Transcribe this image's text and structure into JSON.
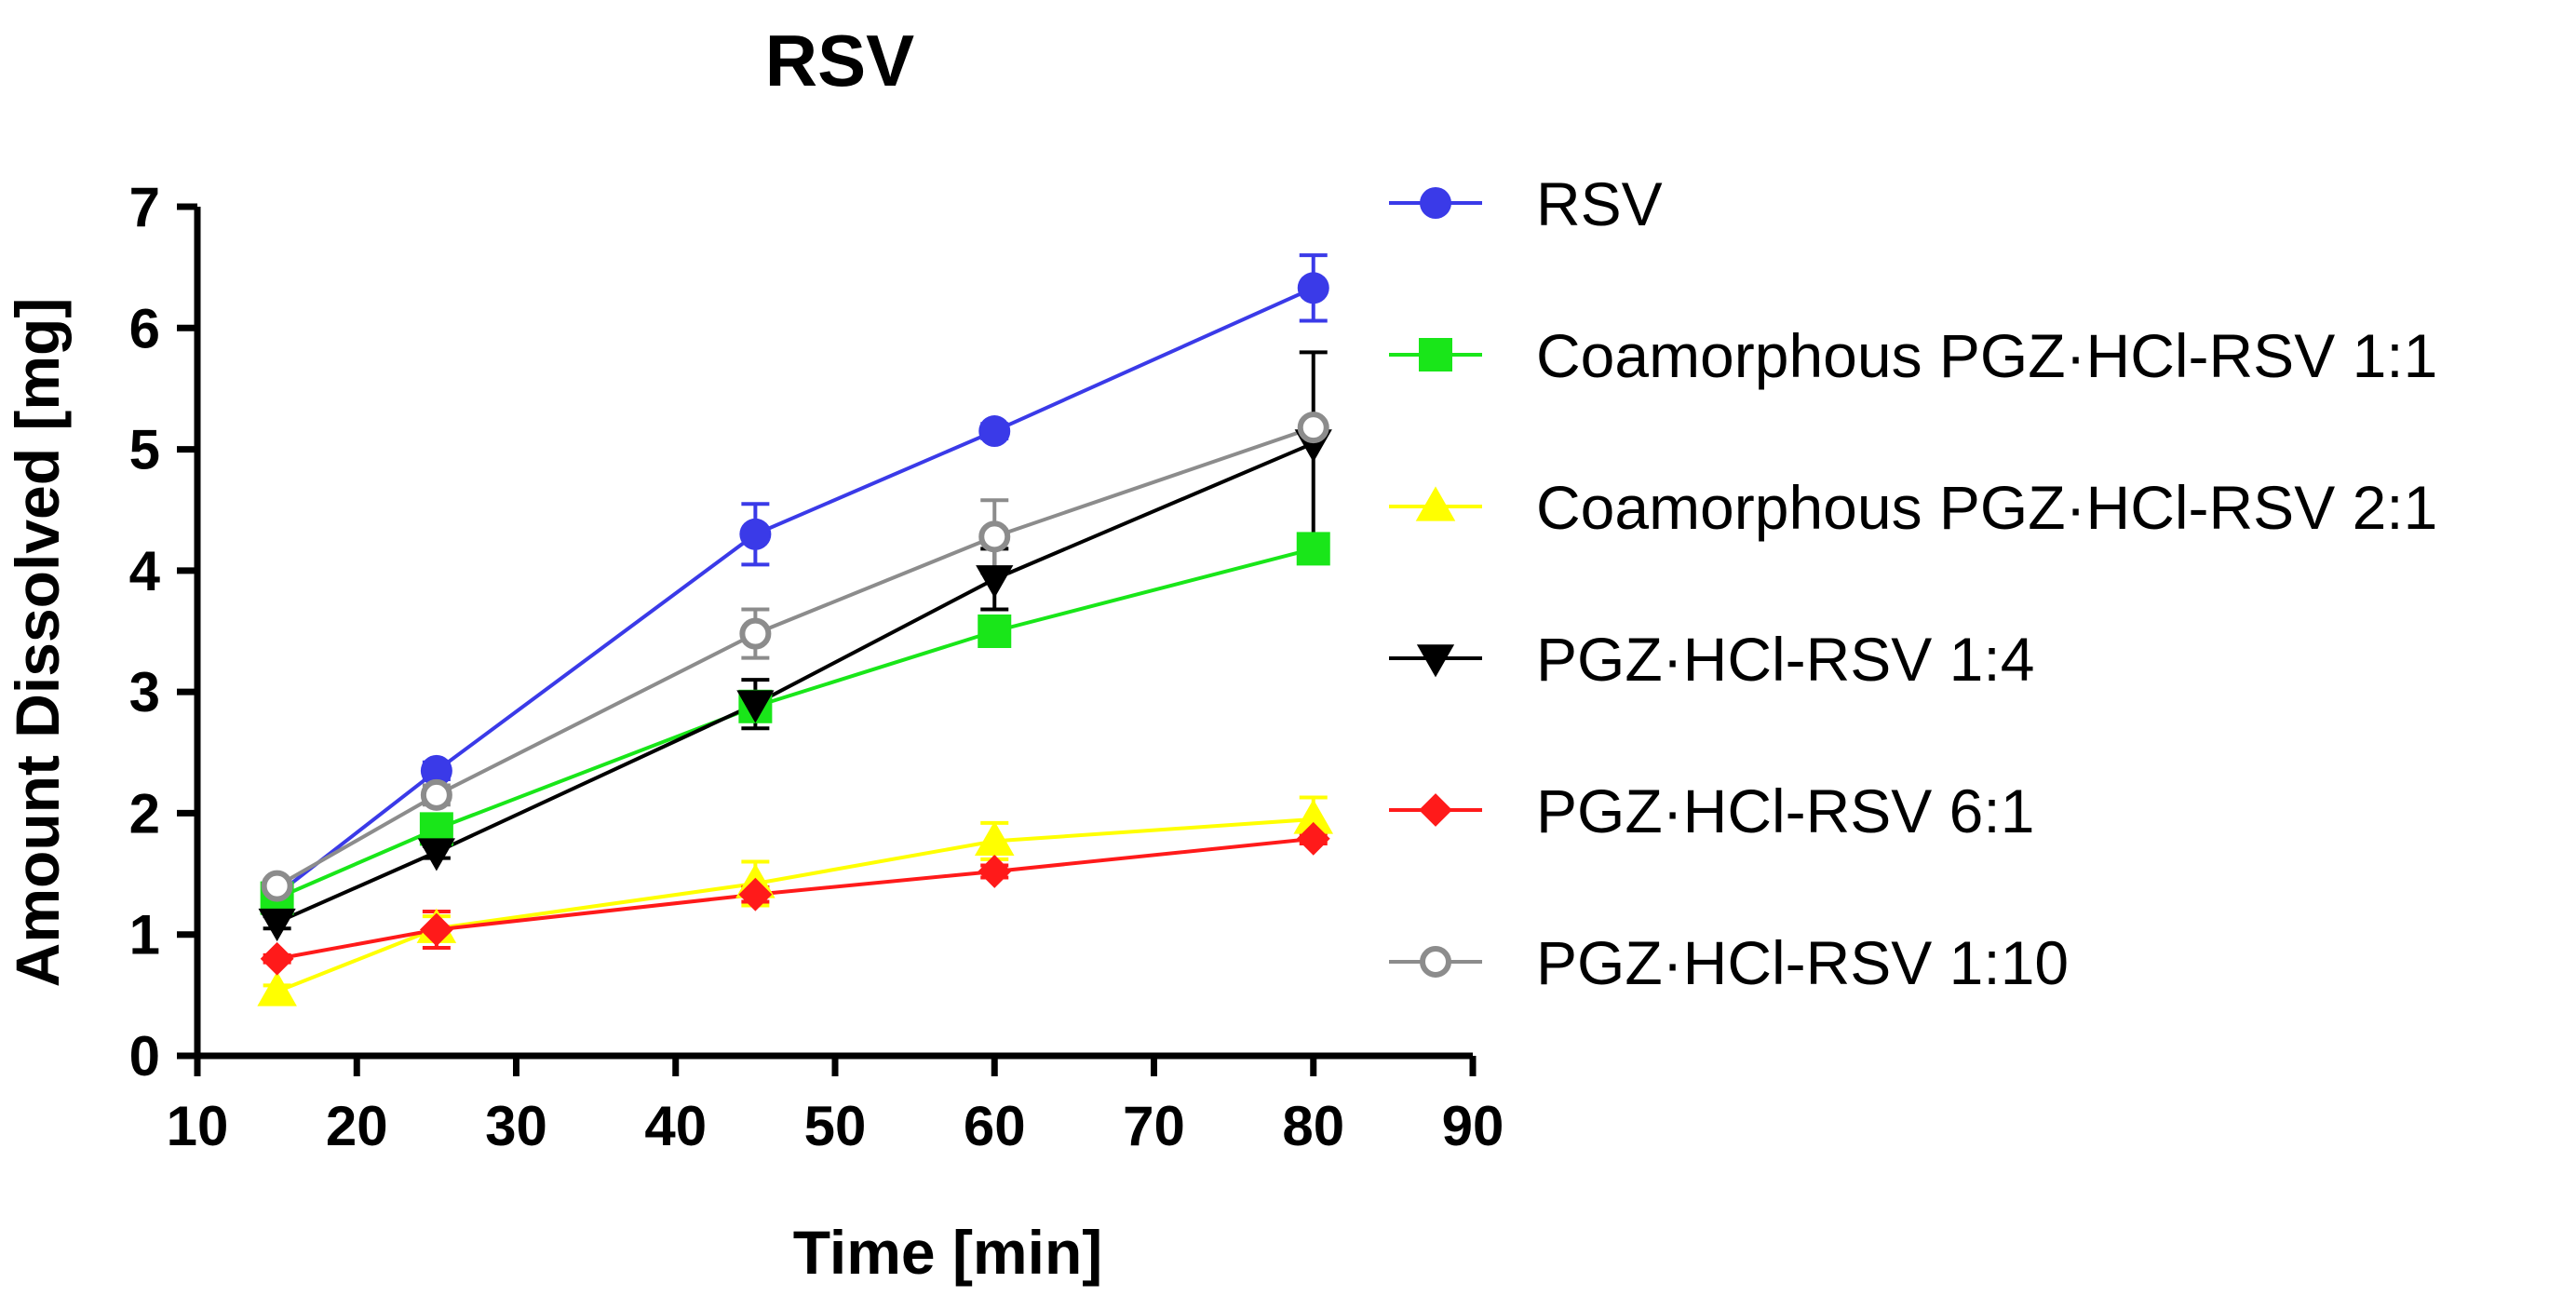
{
  "chart_data": {
    "type": "line",
    "title": "RSV",
    "xlabel": "Time [min]",
    "ylabel": "Amount Dissolved [mg]",
    "xlim": [
      10,
      90
    ],
    "ylim": [
      0,
      7
    ],
    "xticks": [
      10,
      20,
      30,
      40,
      50,
      60,
      70,
      80,
      90
    ],
    "yticks": [
      0,
      1,
      2,
      3,
      4,
      5,
      6,
      7
    ],
    "x": [
      15,
      25,
      45,
      60,
      80
    ],
    "grid": false,
    "legend_position": "right",
    "series": [
      {
        "name": "RSV",
        "color": "#3a3ae8",
        "marker": "circle",
        "values": [
          1.33,
          2.35,
          4.3,
          5.15,
          6.33
        ],
        "errors": [
          0.05,
          0.07,
          0.25,
          0.06,
          0.27
        ]
      },
      {
        "name": "Coamorphous PGZ·HCl-RSV 1:1",
        "color": "#19e619",
        "marker": "square",
        "values": [
          1.3,
          1.87,
          2.88,
          3.5,
          4.18
        ],
        "errors": [
          0.05,
          0.06,
          0.12,
          0.1,
          0.06
        ]
      },
      {
        "name": "Coamorphous PGZ·HCl-RSV 2:1",
        "color": "#ffff00",
        "marker": "triangle-up",
        "values": [
          0.53,
          1.05,
          1.42,
          1.77,
          1.95
        ],
        "errors": [
          0.05,
          0.1,
          0.18,
          0.15,
          0.18
        ]
      },
      {
        "name": "PGZ·HCl-RSV 1:4",
        "color": "#000000",
        "marker": "triangle-down",
        "values": [
          1.1,
          1.68,
          2.9,
          3.93,
          5.05
        ],
        "errors": [
          0.05,
          0.05,
          0.2,
          0.25,
          0.75
        ]
      },
      {
        "name": "PGZ·HCl-RSV 6:1",
        "color": "#ff1a1a",
        "marker": "diamond",
        "values": [
          0.8,
          1.04,
          1.33,
          1.52,
          1.79
        ],
        "errors": [
          0.03,
          0.15,
          0.06,
          0.05,
          0.04
        ]
      },
      {
        "name": "PGZ·HCl-RSV 1:10",
        "color": "#8c8c8c",
        "marker": "open-circle",
        "values": [
          1.4,
          2.15,
          3.48,
          4.28,
          5.18
        ],
        "errors": [
          0.05,
          0.08,
          0.2,
          0.3,
          0.05
        ]
      }
    ]
  }
}
